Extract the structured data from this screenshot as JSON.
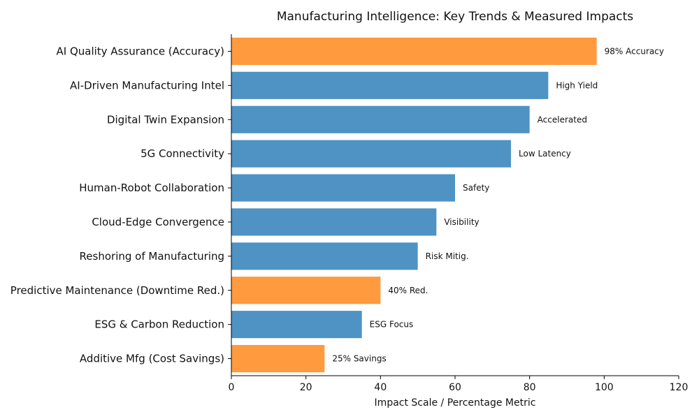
{
  "chart_data": {
    "type": "bar",
    "orientation": "horizontal",
    "title": "Manufacturing Intelligence: Key Trends & Measured Impacts",
    "xlabel": "Impact Scale / Percentage Metric",
    "ylabel": "",
    "xlim": [
      0,
      120
    ],
    "xticks": [
      0,
      20,
      40,
      60,
      80,
      100,
      120
    ],
    "grid": false,
    "colors": {
      "trend": "#4e93c4",
      "measured": "#ff9a3e"
    },
    "bars": [
      {
        "category": "AI Quality Assurance (Accuracy)",
        "value": 98,
        "label": "98% Accuracy",
        "group": "measured"
      },
      {
        "category": "AI-Driven Manufacturing Intel",
        "value": 85,
        "label": "High Yield",
        "group": "trend"
      },
      {
        "category": "Digital Twin Expansion",
        "value": 80,
        "label": "Accelerated",
        "group": "trend"
      },
      {
        "category": "5G Connectivity",
        "value": 75,
        "label": "Low Latency",
        "group": "trend"
      },
      {
        "category": "Human-Robot Collaboration",
        "value": 60,
        "label": "Safety",
        "group": "trend"
      },
      {
        "category": "Cloud-Edge Convergence",
        "value": 55,
        "label": "Visibility",
        "group": "trend"
      },
      {
        "category": "Reshoring of Manufacturing",
        "value": 50,
        "label": "Risk Mitig.",
        "group": "trend"
      },
      {
        "category": "Predictive Maintenance (Downtime Red.)",
        "value": 40,
        "label": "40% Red.",
        "group": "measured"
      },
      {
        "category": "ESG & Carbon Reduction",
        "value": 35,
        "label": "ESG Focus",
        "group": "trend"
      },
      {
        "category": "Additive Mfg (Cost Savings)",
        "value": 25,
        "label": "25% Savings",
        "group": "measured"
      }
    ]
  }
}
